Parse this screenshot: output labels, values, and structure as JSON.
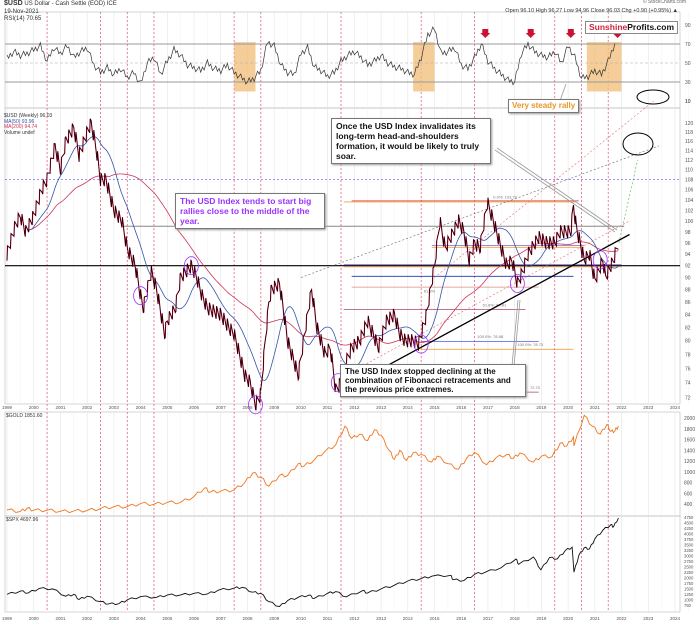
{
  "header": {
    "symbol": "$USD",
    "name": "US Dollar - Cash Settle (EOD) ICE",
    "date": "19-Nov-2021",
    "rsi_legend": "RSI(14) 70.65",
    "credit": "© StockCharts.com",
    "quote": "Open 96.10  High 96.27  Low 94.96  Close 96.03  Chg +0.90 (+0.95%) ▲"
  },
  "logo": {
    "part1": "Sunshine",
    "part2": "Profits.com"
  },
  "annotations": {
    "steady_rally": "Very steady rally",
    "hs_note": "Once the USD Index invalidates its long-term head-and-shoulders formation, it would be likely to truly soar.",
    "midyear_note": "The USD Index tends to start big rallies close to the middle of the year.",
    "fib_note": "The USD Index stopped declining at the combination of Fibonacci retracements and the previous price extremes."
  },
  "colors": {
    "usd": "#000000",
    "usd_down": "#cc0033",
    "ma50": "#3355aa",
    "ma200": "#cc3355",
    "gold": "#ee7722",
    "spx": "#111111",
    "highlight": "#f3c080",
    "cycle_line": "#e05070",
    "purple": "#9933ff"
  },
  "chart_data": [
    {
      "type": "line",
      "panel": "rsi",
      "legend": "RSI(14) 70.65",
      "x_start": 1999,
      "x_step": 0.25,
      "values": [
        55,
        62,
        58,
        60,
        64,
        68,
        52,
        66,
        60,
        68,
        56,
        62,
        66,
        48,
        40,
        45,
        38,
        44,
        35,
        40,
        28,
        50,
        56,
        38,
        52,
        64,
        58,
        48,
        45,
        42,
        50,
        44,
        42,
        48,
        40,
        35,
        30,
        34,
        42,
        72,
        68,
        48,
        40,
        38,
        60,
        66,
        46,
        42,
        36,
        40,
        52,
        58,
        62,
        56,
        48,
        52,
        58,
        50,
        46,
        44,
        40,
        38,
        56,
        80,
        86,
        60,
        62,
        66,
        48,
        44,
        56,
        70,
        52,
        44,
        38,
        32,
        30,
        60,
        70,
        62,
        58,
        56,
        62,
        50,
        68,
        56,
        34,
        36,
        42,
        38,
        52,
        70.65
      ],
      "yticks": [
        90,
        70,
        50,
        30,
        10
      ],
      "reference_levels": [
        70,
        50,
        30
      ],
      "highlighted_ranges": [
        [
          2007.5,
          2008.3
        ],
        [
          2014.2,
          2015.0
        ],
        [
          2020.7,
          2022.0
        ]
      ],
      "arrows_at": [
        2016.9,
        2018.6,
        2020.1,
        2021.85
      ]
    },
    {
      "type": "line",
      "panel": "usd",
      "scale": "log",
      "legend": [
        "$USD (Weekly) 96.03",
        "MA(50) 93.96",
        "MA(200) 94.74",
        "Volume undef"
      ],
      "points": [
        [
          1999.0,
          94
        ],
        [
          1999.3,
          99
        ],
        [
          1999.5,
          101
        ],
        [
          1999.7,
          98
        ],
        [
          2000.0,
          101
        ],
        [
          2000.3,
          106
        ],
        [
          2000.5,
          108
        ],
        [
          2000.8,
          115
        ],
        [
          2001.0,
          110
        ],
        [
          2001.2,
          116
        ],
        [
          2001.5,
          119
        ],
        [
          2001.7,
          113
        ],
        [
          2002.0,
          118
        ],
        [
          2002.15,
          120
        ],
        [
          2002.35,
          114
        ],
        [
          2002.5,
          108
        ],
        [
          2002.7,
          108
        ],
        [
          2003.0,
          102
        ],
        [
          2003.3,
          100
        ],
        [
          2003.5,
          95
        ],
        [
          2003.8,
          92
        ],
        [
          2004.0,
          87
        ],
        [
          2004.1,
          85
        ],
        [
          2004.4,
          91
        ],
        [
          2004.6,
          88
        ],
        [
          2004.9,
          81
        ],
        [
          2005.0,
          83
        ],
        [
          2005.3,
          85
        ],
        [
          2005.5,
          90
        ],
        [
          2005.9,
          92
        ],
        [
          2006.1,
          90
        ],
        [
          2006.3,
          87
        ],
        [
          2006.5,
          85
        ],
        [
          2007.0,
          84
        ],
        [
          2007.3,
          82
        ],
        [
          2007.5,
          81
        ],
        [
          2007.9,
          75
        ],
        [
          2008.1,
          74
        ],
        [
          2008.3,
          71
        ],
        [
          2008.5,
          72.5
        ],
        [
          2008.8,
          86
        ],
        [
          2008.9,
          88
        ],
        [
          2009.2,
          89
        ],
        [
          2009.5,
          80
        ],
        [
          2009.9,
          75
        ],
        [
          2010.1,
          80
        ],
        [
          2010.4,
          88
        ],
        [
          2010.6,
          82
        ],
        [
          2010.9,
          78
        ],
        [
          2011.1,
          79
        ],
        [
          2011.3,
          73
        ],
        [
          2011.5,
          74
        ],
        [
          2011.7,
          77
        ],
        [
          2011.9,
          79
        ],
        [
          2012.2,
          80
        ],
        [
          2012.5,
          83
        ],
        [
          2012.7,
          81
        ],
        [
          2012.9,
          79
        ],
        [
          2013.2,
          83
        ],
        [
          2013.5,
          84
        ],
        [
          2013.7,
          81
        ],
        [
          2013.9,
          80
        ],
        [
          2014.2,
          80
        ],
        [
          2014.4,
          79.5
        ],
        [
          2014.7,
          84
        ],
        [
          2015.0,
          92
        ],
        [
          2015.2,
          100
        ],
        [
          2015.4,
          95
        ],
        [
          2015.6,
          97
        ],
        [
          2015.9,
          100
        ],
        [
          2016.1,
          98
        ],
        [
          2016.3,
          93
        ],
        [
          2016.5,
          96
        ],
        [
          2016.7,
          95
        ],
        [
          2016.98,
          103.5
        ],
        [
          2017.2,
          100
        ],
        [
          2017.5,
          95
        ],
        [
          2017.7,
          92
        ],
        [
          2017.9,
          93
        ],
        [
          2018.1,
          89
        ],
        [
          2018.3,
          91
        ],
        [
          2018.5,
          94
        ],
        [
          2018.9,
          97
        ],
        [
          2019.2,
          96
        ],
        [
          2019.5,
          96
        ],
        [
          2019.7,
          98
        ],
        [
          2019.9,
          98
        ],
        [
          2020.1,
          98
        ],
        [
          2020.2,
          103
        ],
        [
          2020.3,
          99
        ],
        [
          2020.6,
          93
        ],
        [
          2020.8,
          94
        ],
        [
          2021.0,
          89.5
        ],
        [
          2021.3,
          93
        ],
        [
          2021.4,
          90
        ],
        [
          2021.7,
          93
        ],
        [
          2021.88,
          96
        ]
      ],
      "yticks": [
        120,
        118,
        116,
        114,
        112,
        110,
        108,
        106,
        104,
        102,
        100,
        98,
        96,
        94,
        92,
        90,
        88,
        86,
        84,
        82,
        80,
        78,
        76,
        74,
        72
      ],
      "extra_rsi_tick": 10,
      "horizontal_levels": {
        "support": 92,
        "purple_dashed": 108,
        "gray": 99
      },
      "fibonacci_labels": [
        "0.0%: 103.79",
        "61.8%",
        "61.8%: 84.81",
        "100.0%: 78.88",
        "100.0%: 78.73",
        "72.70"
      ],
      "circled_lows": [
        2004.0,
        2005.9,
        2008.3,
        2011.4,
        2014.5,
        2018.1,
        2021.2
      ]
    },
    {
      "type": "line",
      "panel": "gold",
      "legend": "$GOLD 1851.60",
      "points": [
        [
          1999.0,
          290
        ],
        [
          1999.5,
          260
        ],
        [
          1999.75,
          320
        ],
        [
          2000.0,
          285
        ],
        [
          2000.5,
          285
        ],
        [
          2001.0,
          265
        ],
        [
          2001.5,
          270
        ],
        [
          2002.0,
          280
        ],
        [
          2002.5,
          315
        ],
        [
          2003.0,
          350
        ],
        [
          2003.5,
          350
        ],
        [
          2004.0,
          410
        ],
        [
          2004.5,
          395
        ],
        [
          2005.0,
          430
        ],
        [
          2005.5,
          430
        ],
        [
          2006.0,
          540
        ],
        [
          2006.4,
          700
        ],
        [
          2006.6,
          620
        ],
        [
          2007.0,
          640
        ],
        [
          2007.5,
          660
        ],
        [
          2007.9,
          800
        ],
        [
          2008.2,
          980
        ],
        [
          2008.5,
          900
        ],
        [
          2008.8,
          730
        ],
        [
          2009.2,
          930
        ],
        [
          2009.5,
          930
        ],
        [
          2009.9,
          1150
        ],
        [
          2010.1,
          1100
        ],
        [
          2010.5,
          1220
        ],
        [
          2010.9,
          1380
        ],
        [
          2011.3,
          1500
        ],
        [
          2011.65,
          1850
        ],
        [
          2011.9,
          1620
        ],
        [
          2012.2,
          1700
        ],
        [
          2012.5,
          1580
        ],
        [
          2012.75,
          1780
        ],
        [
          2013.0,
          1680
        ],
        [
          2013.3,
          1400
        ],
        [
          2013.5,
          1230
        ],
        [
          2013.7,
          1400
        ],
        [
          2013.95,
          1210
        ],
        [
          2014.2,
          1350
        ],
        [
          2014.5,
          1320
        ],
        [
          2014.9,
          1180
        ],
        [
          2015.1,
          1290
        ],
        [
          2015.5,
          1150
        ],
        [
          2015.9,
          1050
        ],
        [
          2016.2,
          1250
        ],
        [
          2016.5,
          1360
        ],
        [
          2016.95,
          1130
        ],
        [
          2017.3,
          1260
        ],
        [
          2017.7,
          1320
        ],
        [
          2017.95,
          1250
        ],
        [
          2018.2,
          1350
        ],
        [
          2018.7,
          1180
        ],
        [
          2019.0,
          1290
        ],
        [
          2019.4,
          1280
        ],
        [
          2019.7,
          1530
        ],
        [
          2019.95,
          1480
        ],
        [
          2020.2,
          1650
        ],
        [
          2020.22,
          1480
        ],
        [
          2020.6,
          2050
        ],
        [
          2020.9,
          1850
        ],
        [
          2021.2,
          1700
        ],
        [
          2021.45,
          1880
        ],
        [
          2021.6,
          1750
        ],
        [
          2021.75,
          1760
        ],
        [
          2021.88,
          1851.6
        ]
      ],
      "yticks": [
        2000,
        1800,
        1600,
        1400,
        1200,
        1000,
        800,
        600,
        400
      ]
    },
    {
      "type": "line",
      "panel": "spx",
      "legend": "$SPX 4697.96",
      "points": [
        [
          1999.0,
          1230
        ],
        [
          1999.5,
          1380
        ],
        [
          1999.8,
          1300
        ],
        [
          2000.2,
          1500
        ],
        [
          2000.7,
          1480
        ],
        [
          2001.2,
          1150
        ],
        [
          2001.5,
          1230
        ],
        [
          2001.7,
          1000
        ],
        [
          2002.0,
          1150
        ],
        [
          2002.5,
          900
        ],
        [
          2002.8,
          800
        ],
        [
          2003.2,
          820
        ],
        [
          2003.5,
          980
        ],
        [
          2004.0,
          1130
        ],
        [
          2004.6,
          1100
        ],
        [
          2005.0,
          1200
        ],
        [
          2005.5,
          1210
        ],
        [
          2006.0,
          1280
        ],
        [
          2006.5,
          1250
        ],
        [
          2006.9,
          1420
        ],
        [
          2007.5,
          1520
        ],
        [
          2007.8,
          1550
        ],
        [
          2008.2,
          1330
        ],
        [
          2008.5,
          1280
        ],
        [
          2008.8,
          900
        ],
        [
          2009.2,
          680
        ],
        [
          2009.5,
          950
        ],
        [
          2009.9,
          1100
        ],
        [
          2010.3,
          1200
        ],
        [
          2010.5,
          1050
        ],
        [
          2011.0,
          1280
        ],
        [
          2011.3,
          1360
        ],
        [
          2011.7,
          1120
        ],
        [
          2012.3,
          1400
        ],
        [
          2012.5,
          1300
        ],
        [
          2013.0,
          1480
        ],
        [
          2013.5,
          1650
        ],
        [
          2014.0,
          1840
        ],
        [
          2014.5,
          1950
        ],
        [
          2014.9,
          2060
        ],
        [
          2015.6,
          2100
        ],
        [
          2015.7,
          1900
        ],
        [
          2016.1,
          1860
        ],
        [
          2016.5,
          2150
        ],
        [
          2016.9,
          2240
        ],
        [
          2017.5,
          2450
        ],
        [
          2018.05,
          2840
        ],
        [
          2018.15,
          2600
        ],
        [
          2018.7,
          2930
        ],
        [
          2018.98,
          2350
        ],
        [
          2019.3,
          2900
        ],
        [
          2019.6,
          2850
        ],
        [
          2019.9,
          3230
        ],
        [
          2020.15,
          3380
        ],
        [
          2020.22,
          2240
        ],
        [
          2020.4,
          3000
        ],
        [
          2020.6,
          3350
        ],
        [
          2020.8,
          3300
        ],
        [
          2021.0,
          3750
        ],
        [
          2021.3,
          4150
        ],
        [
          2021.6,
          4400
        ],
        [
          2021.7,
          4300
        ],
        [
          2021.88,
          4697.96
        ]
      ],
      "yticks": [
        4750,
        4500,
        4250,
        4000,
        3750,
        3500,
        3250,
        3000,
        2750,
        2500,
        2250,
        2000,
        1750,
        1500,
        1250,
        1000,
        750
      ]
    }
  ],
  "x_axis": {
    "years": [
      "1999",
      "2000",
      "2001",
      "2002",
      "2003",
      "2004",
      "2005",
      "2006",
      "2007",
      "2008",
      "2009",
      "2010",
      "2011",
      "2012",
      "2013",
      "2014",
      "2015",
      "2016",
      "2017",
      "2018",
      "2019",
      "2020",
      "2021",
      "2022",
      "2023",
      "2024"
    ],
    "cycle_markers": [
      2000.5,
      2002.5,
      2003.5,
      2004.5,
      2007.5,
      2008.5,
      2011.5,
      2014.5,
      2016.5,
      2019.5,
      2020.5,
      2021.5
    ]
  }
}
